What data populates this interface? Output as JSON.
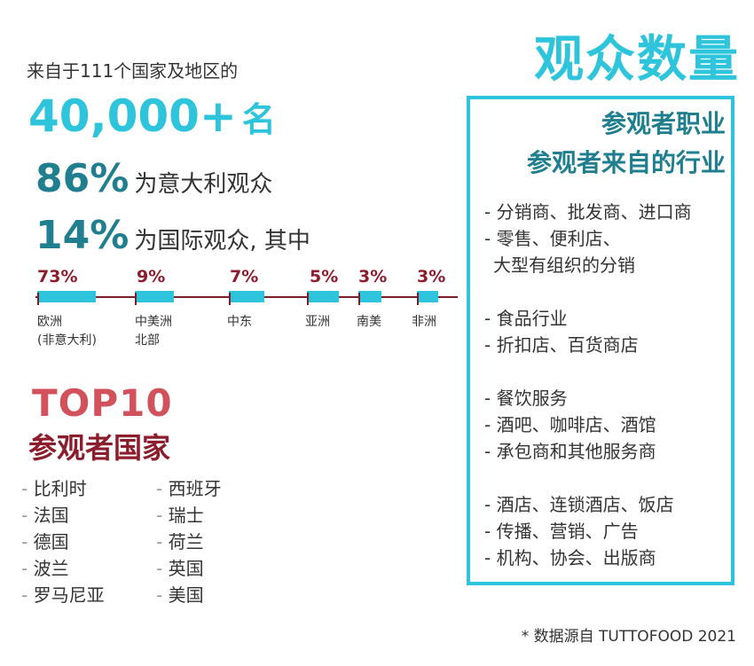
{
  "page": {
    "title": "观众数量",
    "intro": "来自于111个国家及地区的",
    "total": {
      "number": "40,000+",
      "unit": "名"
    },
    "italy": {
      "percent": "86%",
      "text": "为意大利观众"
    },
    "international": {
      "percent": "14%",
      "text": "为国际观众, 其中"
    }
  },
  "regions": [
    {
      "pct": "73%",
      "label_line1": "欧洲",
      "label_line2": "(非意大利)"
    },
    {
      "pct": "9%",
      "label_line1": "中美洲",
      "label_line2": "北部"
    },
    {
      "pct": "7%",
      "label_line1": "中东",
      "label_line2": ""
    },
    {
      "pct": "5%",
      "label_line1": "亚洲",
      "label_line2": ""
    },
    {
      "pct": "3%",
      "label_line1": "南美",
      "label_line2": ""
    },
    {
      "pct": "3%",
      "label_line1": "非洲",
      "label_line2": ""
    }
  ],
  "top10": {
    "title": "TOP10",
    "subtitle": "参观者国家",
    "dash": "-",
    "col1": [
      "比利时",
      "法国",
      "德国",
      "波兰",
      "罗马尼亚"
    ],
    "col2": [
      "西班牙",
      "瑞士",
      "荷兰",
      "英国",
      "美国"
    ]
  },
  "industry": {
    "heading_line1": "参观者职业",
    "heading_line2": "参观者来自的行业",
    "groups": [
      [
        "- 分销商、批发商、进口商",
        "- 零售、便利店、",
        "  大型有组织的分销"
      ],
      [
        "- 食品行业",
        "- 折扣店、百货商店"
      ],
      [
        "- 餐饮服务",
        "- 酒吧、咖啡店、酒馆",
        "- 承包商和其他服务商"
      ],
      [
        "- 酒店、连锁酒店、饭店",
        "- 传播、营销、广告",
        "- 机构、协会、出版商"
      ]
    ]
  },
  "source": "* 数据源自 TUTTOFOOD 2021",
  "colors": {
    "accent": "#2ec4dc",
    "teal_dark": "#1f7f8e",
    "red": "#d2525c",
    "maroon": "#8b1d2c"
  }
}
